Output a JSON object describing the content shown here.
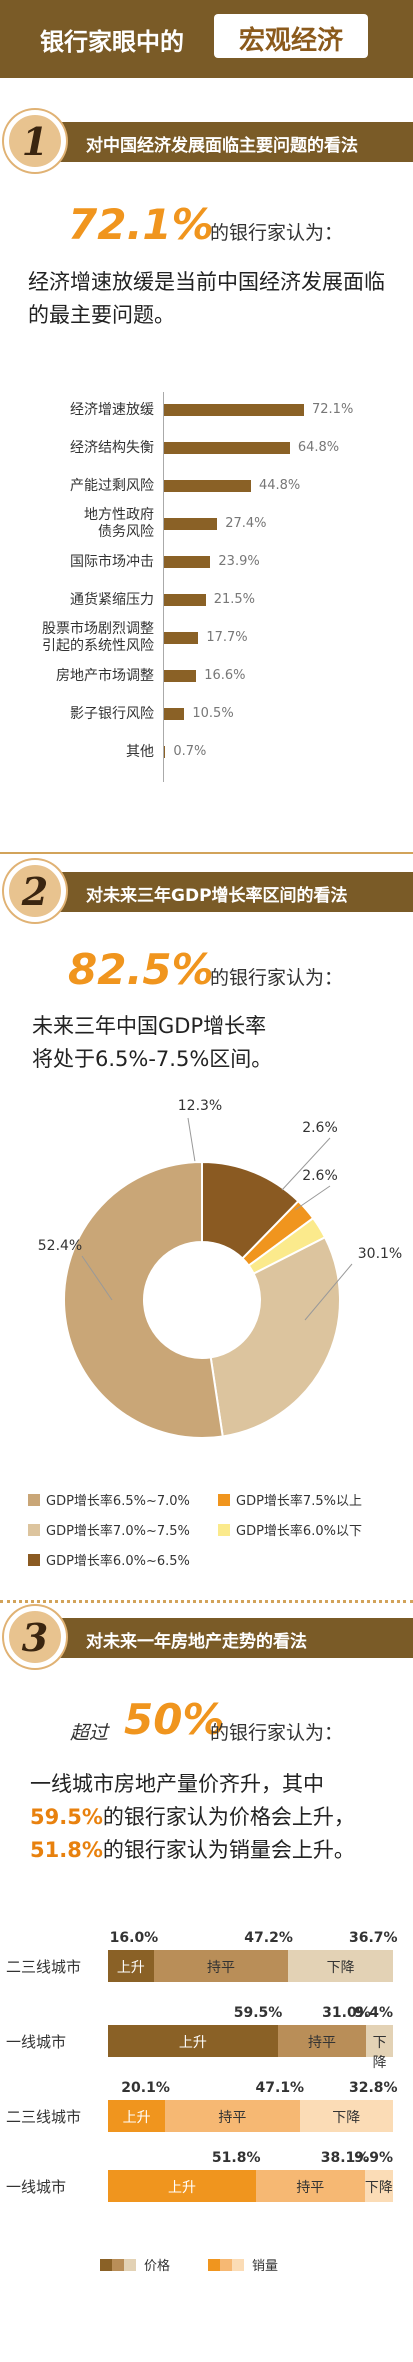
{
  "header": {
    "title_a": "银行家眼中的",
    "title_b": "宏观经济"
  },
  "sections": [
    {
      "num": "1",
      "title": "对中国经济发展面临主要问题的看法",
      "highlight": "72.1%",
      "highlight_suffix": "的银行家认为：",
      "text": "经济增速放缓是当前中国经济发展面临的最主要问题。"
    },
    {
      "num": "2",
      "title": "对未来三年GDP增长率区间的看法",
      "highlight": "82.5%",
      "highlight_suffix": "的银行家认为：",
      "text_line1": "未来三年中国GDP增长率",
      "text_line2": "将处于6.5%-7.5%区间。"
    },
    {
      "num": "3",
      "title": "对未来一年房地产走势的看法",
      "prefix": "超过",
      "highlight": "50%",
      "highlight_suffix": "的银行家认为：",
      "line1": "一线城市房地产量价齐升，其中",
      "line2_pct": "59.5%",
      "line2_rest": "的银行家认为价格会上升，",
      "line3_pct": "51.8%",
      "line3_rest": "的银行家认为销量会上升。"
    }
  ],
  "chart_data": [
    {
      "type": "bar",
      "orientation": "horizontal",
      "categories": [
        "经济增速放缓",
        "经济结构失衡",
        "产能过剩风险",
        "地方性政府\n债务风险",
        "国际市场冲击",
        "通货紧缩压力",
        "股票市场剧烈调整\n引起的系统性风险",
        "房地产市场调整",
        "影子银行风险",
        "其他"
      ],
      "values": [
        72.1,
        64.8,
        44.8,
        27.4,
        23.9,
        21.5,
        17.7,
        16.6,
        10.5,
        0.7
      ],
      "value_labels": [
        "72.1%",
        "64.8%",
        "44.8%",
        "27.4%",
        "23.9%",
        "21.5%",
        "17.7%",
        "16.6%",
        "10.5%",
        "0.7%"
      ],
      "color": "#8a6126"
    },
    {
      "type": "pie",
      "variant": "donut",
      "slices": [
        {
          "name": "GDP增长率6.0%~6.5%",
          "value": 12.3,
          "label": "12.3%",
          "color": "#8a5a22"
        },
        {
          "name": "GDP增长率7.5%以上",
          "value": 2.6,
          "label": "2.6%",
          "color": "#f0951e"
        },
        {
          "name": "GDP增长率6.0%以下",
          "value": 2.6,
          "label": "2.6%",
          "color": "#fbea8c"
        },
        {
          "name": "GDP增长率7.0%~7.5%",
          "value": 30.1,
          "label": "30.1%",
          "color": "#dcc49e"
        },
        {
          "name": "GDP增长率6.5%~7.0%",
          "value": 52.4,
          "label": "52.4%",
          "color": "#c9a677"
        }
      ],
      "legend": [
        {
          "label": "GDP增长率6.5%~7.0%",
          "color": "#c9a677"
        },
        {
          "label": "GDP增长率7.5%以上",
          "color": "#f0951e"
        },
        {
          "label": "GDP增长率7.0%~7.5%",
          "color": "#dcc49e"
        },
        {
          "label": "GDP增长率6.0%以下",
          "color": "#fbea8c"
        },
        {
          "label": "GDP增长率6.0%~6.5%",
          "color": "#8a5a22"
        }
      ],
      "legend_position": "bottom"
    },
    {
      "type": "bar",
      "variant": "stacked-horizontal-100",
      "rows": [
        {
          "label": "二三线城市",
          "group": "价格",
          "segments": [
            {
              "name": "上升",
              "value": 16.0,
              "color": "#8a6126"
            },
            {
              "name": "持平",
              "value": 47.2,
              "color": "#b98e58"
            },
            {
              "name": "下降",
              "value": 36.7,
              "color": "#e3d2b5"
            }
          ]
        },
        {
          "label": "一线城市",
          "group": "价格",
          "segments": [
            {
              "name": "上升",
              "value": 59.5,
              "color": "#8a6126"
            },
            {
              "name": "持平",
              "value": 31.0,
              "color": "#b98e58"
            },
            {
              "name": "下降",
              "value": 9.4,
              "color": "#e3d2b5"
            }
          ]
        },
        {
          "label": "二三线城市",
          "group": "销量",
          "segments": [
            {
              "name": "上升",
              "value": 20.1,
              "color": "#f0951e"
            },
            {
              "name": "持平",
              "value": 47.1,
              "color": "#f6b873"
            },
            {
              "name": "下降",
              "value": 32.8,
              "color": "#fbdcb6"
            }
          ]
        },
        {
          "label": "一线城市",
          "group": "销量",
          "segments": [
            {
              "name": "上升",
              "value": 51.8,
              "color": "#f0951e"
            },
            {
              "name": "持平",
              "value": 38.1,
              "color": "#f6b873"
            },
            {
              "name": "下降",
              "value": 9.9,
              "color": "#fbdcb6"
            }
          ]
        }
      ],
      "value_labels": [
        [
          "16.0%",
          "47.2%",
          "36.7%"
        ],
        [
          "59.5%",
          "31.0%",
          "9.4%"
        ],
        [
          "20.1%",
          "47.1%",
          "32.8%"
        ],
        [
          "51.8%",
          "38.1%",
          "9.9%"
        ]
      ],
      "legend": [
        {
          "label": "价格",
          "colors": [
            "#8a6126",
            "#b98e58",
            "#e3d2b5"
          ]
        },
        {
          "label": "销量",
          "colors": [
            "#f0951e",
            "#f6b873",
            "#fbdcb6"
          ]
        }
      ]
    }
  ]
}
